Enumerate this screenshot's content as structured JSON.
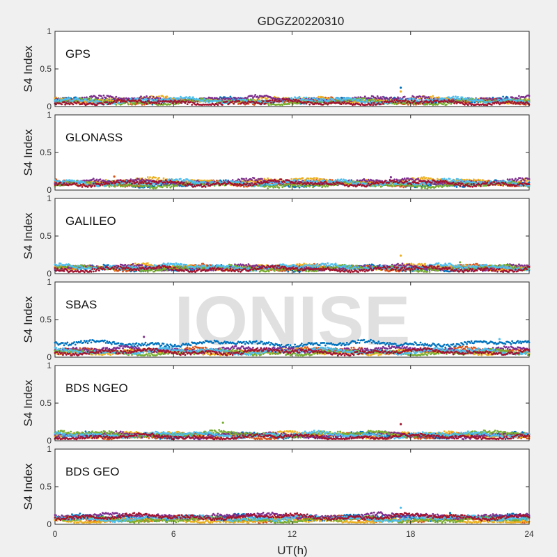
{
  "chart_data": {
    "type": "scatter",
    "title": "GDGZ20220310",
    "xlabel": "UT(h)",
    "ylabel": "S4 Index",
    "xlim": [
      0,
      24
    ],
    "ylim": [
      0,
      1
    ],
    "xticks": [
      0,
      6,
      12,
      18,
      24
    ],
    "xtick_labels": [
      "0",
      "6",
      "12",
      "18",
      "24"
    ],
    "yticks": [
      0,
      0.5,
      1
    ],
    "ytick_labels": [
      "0",
      "0.5",
      "1"
    ],
    "watermark": "IONISE",
    "colors": [
      "#0072BD",
      "#D95319",
      "#EDB120",
      "#7E2F8E",
      "#77AC30",
      "#4DBEEE",
      "#A2142F"
    ],
    "panels": [
      {
        "label": "GPS",
        "series_baselines": [
          0.08,
          0.07,
          0.09,
          0.1,
          0.06,
          0.08,
          0.05
        ],
        "spikes": [
          [
            17.5,
            0.25
          ],
          [
            17.5,
            0.2
          ]
        ]
      },
      {
        "label": "GLONASS",
        "series_baselines": [
          0.08,
          0.09,
          0.12,
          0.11,
          0.07,
          0.1,
          0.09
        ],
        "spikes": [
          [
            3.0,
            0.18
          ],
          [
            17.0,
            0.17
          ]
        ]
      },
      {
        "label": "GALILEO",
        "series_baselines": [
          0.07,
          0.08,
          0.09,
          0.08,
          0.07,
          0.09,
          0.06
        ],
        "spikes": [
          [
            17.5,
            0.24
          ],
          [
            20.5,
            0.15
          ]
        ]
      },
      {
        "label": "SBAS",
        "series_baselines": [
          0.18,
          0.09,
          0.07,
          0.1,
          0.06,
          0.08,
          0.07
        ],
        "spikes": [
          [
            4.5,
            0.27
          ],
          [
            22.5,
            0.24
          ]
        ]
      },
      {
        "label": "BDS NGEO",
        "series_baselines": [
          0.07,
          0.06,
          0.08,
          0.07,
          0.09,
          0.08,
          0.05
        ],
        "spikes": [
          [
            8.5,
            0.24
          ],
          [
            17.5,
            0.22
          ]
        ]
      },
      {
        "label": "BDS GEO",
        "series_baselines": [
          0.09,
          0.07,
          0.05,
          0.11,
          0.06,
          0.08,
          0.1
        ],
        "spikes": [
          [
            17.5,
            0.22
          ],
          [
            20.0,
            0.15
          ]
        ]
      }
    ]
  }
}
